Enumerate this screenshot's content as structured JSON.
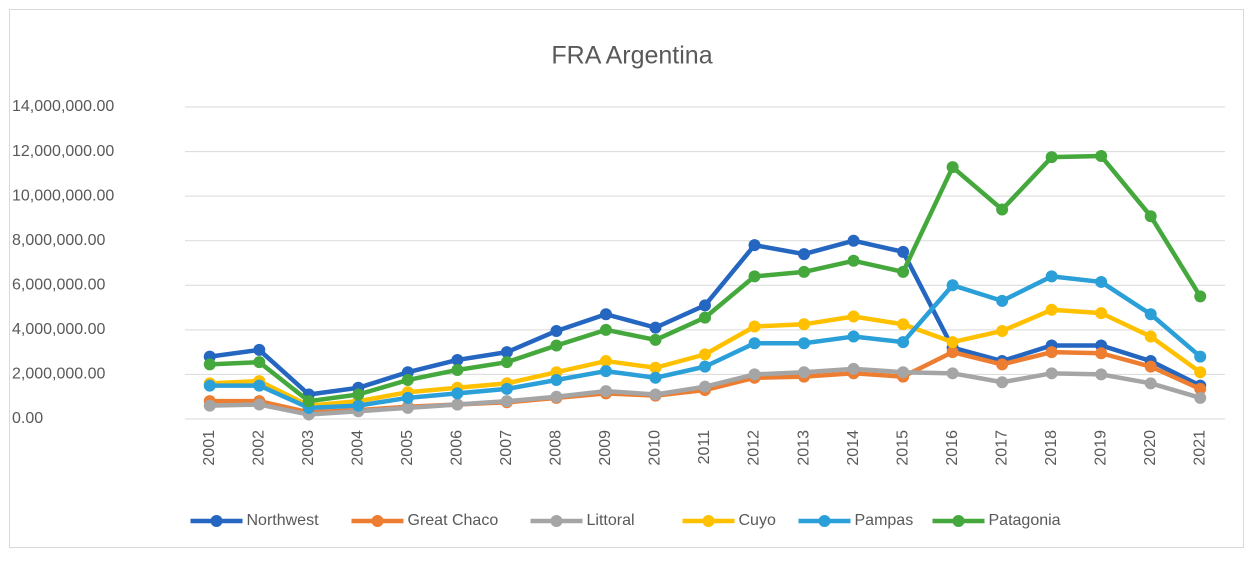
{
  "chart_data": {
    "type": "line",
    "title": "FRA Argentina",
    "categories": [
      "2001",
      "2002",
      "2003",
      "2004",
      "2005",
      "2006",
      "2007",
      "2008",
      "2009",
      "2010",
      "2011",
      "2012",
      "2013",
      "2014",
      "2015",
      "2016",
      "2017",
      "2018",
      "2019",
      "2020",
      "2021"
    ],
    "series": [
      {
        "name": "Northwest",
        "color": "#2466c0",
        "values": [
          2800000,
          3100000,
          1100000,
          1400000,
          2100000,
          2650000,
          3000000,
          3950000,
          4700000,
          4100000,
          5100000,
          7800000,
          7400000,
          8000000,
          7500000,
          3200000,
          2600000,
          3300000,
          3300000,
          2600000,
          1500000
        ]
      },
      {
        "name": "Great Chaco",
        "color": "#ed7d31",
        "values": [
          800000,
          800000,
          300000,
          400000,
          550000,
          650000,
          750000,
          950000,
          1150000,
          1050000,
          1300000,
          1850000,
          1900000,
          2050000,
          1900000,
          3000000,
          2450000,
          3000000,
          2950000,
          2350000,
          1350000
        ]
      },
      {
        "name": "Littoral",
        "color": "#a5a5a5",
        "values": [
          600000,
          650000,
          200000,
          350000,
          500000,
          650000,
          800000,
          1000000,
          1250000,
          1100000,
          1450000,
          2000000,
          2100000,
          2250000,
          2100000,
          2050000,
          1650000,
          2050000,
          2000000,
          1600000,
          950000
        ]
      },
      {
        "name": "Cuyo",
        "color": "#ffc000",
        "values": [
          1600000,
          1700000,
          600000,
          800000,
          1200000,
          1400000,
          1600000,
          2100000,
          2600000,
          2300000,
          2900000,
          4150000,
          4250000,
          4600000,
          4250000,
          3450000,
          3950000,
          4900000,
          4750000,
          3700000,
          2100000
        ]
      },
      {
        "name": "Pampas",
        "color": "#2a9fd8",
        "values": [
          1500000,
          1500000,
          500000,
          600000,
          950000,
          1150000,
          1350000,
          1750000,
          2150000,
          1850000,
          2350000,
          3400000,
          3400000,
          3700000,
          3450000,
          6000000,
          5300000,
          6400000,
          6150000,
          4700000,
          2800000
        ]
      },
      {
        "name": "Patagonia",
        "color": "#45a83c",
        "values": [
          2450000,
          2550000,
          800000,
          1100000,
          1750000,
          2200000,
          2550000,
          3300000,
          4000000,
          3550000,
          4550000,
          6400000,
          6600000,
          7100000,
          6600000,
          11300000,
          9400000,
          11750000,
          11800000,
          9100000,
          5500000
        ]
      }
    ],
    "ylim": [
      0,
      14000000
    ],
    "yticks": [
      {
        "value": 0,
        "label": "0.00"
      },
      {
        "value": 2000000,
        "label": "2,000,000.00"
      },
      {
        "value": 4000000,
        "label": "4,000,000.00"
      },
      {
        "value": 6000000,
        "label": "6,000,000.00"
      },
      {
        "value": 8000000,
        "label": "8,000,000.00"
      },
      {
        "value": 10000000,
        "label": "10,000,000.00"
      },
      {
        "value": 12000000,
        "label": "12,000,000.00"
      },
      {
        "value": 14000000,
        "label": "14,000,000.00"
      }
    ],
    "grid": true,
    "legend": "bottom"
  }
}
